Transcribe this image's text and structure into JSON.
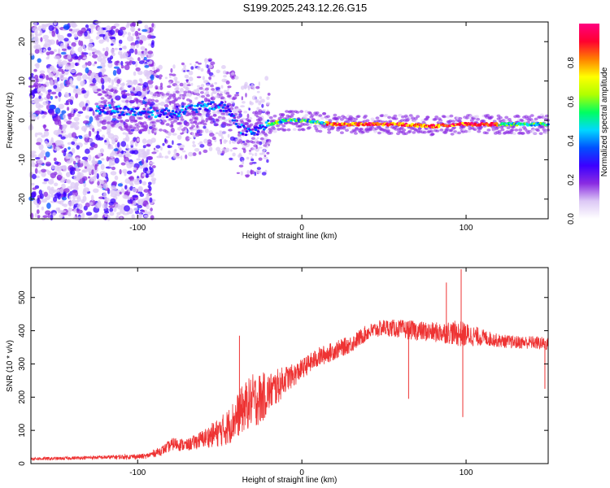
{
  "title": "S199.2025.243.12.26.G15",
  "chart_data": [
    {
      "type": "heatmap",
      "xlabel": "Height of straight line (km)",
      "ylabel": "Frequency (Hz)",
      "xlim": [
        -165,
        150
      ],
      "ylim": [
        -25,
        25
      ],
      "x_ticks": [
        -100,
        0,
        100
      ],
      "y_ticks": [
        -20,
        -10,
        0,
        10,
        20
      ],
      "colorbar": {
        "label": "Normalized spectral amplitude",
        "range": [
          0.0,
          1.0
        ],
        "ticks": [
          0.0,
          0.2,
          0.4,
          0.6,
          0.8
        ],
        "colors": [
          "#ffffff",
          "#dcc8f5",
          "#8a2be2",
          "#3b00ff",
          "#0050ff",
          "#00d8ff",
          "#00ff60",
          "#b0ff00",
          "#ffff00",
          "#ff8000",
          "#ff0030",
          "#ff0080"
        ]
      },
      "ridge": [
        {
          "x": -125,
          "f": 3
        },
        {
          "x": -110,
          "f": 2.5
        },
        {
          "x": -95,
          "f": 2
        },
        {
          "x": -80,
          "f": 2
        },
        {
          "x": -65,
          "f": 3
        },
        {
          "x": -55,
          "f": 4
        },
        {
          "x": -45,
          "f": 3
        },
        {
          "x": -38,
          "f": -2
        },
        {
          "x": -30,
          "f": -3
        },
        {
          "x": -20,
          "f": -1
        },
        {
          "x": -10,
          "f": 0
        },
        {
          "x": 0,
          "f": 0
        },
        {
          "x": 20,
          "f": -1
        },
        {
          "x": 40,
          "f": -1
        },
        {
          "x": 60,
          "f": -1
        },
        {
          "x": 80,
          "f": -1.5
        },
        {
          "x": 95,
          "f": -1
        },
        {
          "x": 120,
          "f": -1
        },
        {
          "x": 150,
          "f": -1
        }
      ]
    },
    {
      "type": "line",
      "xlabel": "Height of straight line (km)",
      "ylabel": "SNR (10 * v/v)",
      "xlim": [
        -165,
        150
      ],
      "ylim": [
        0,
        590
      ],
      "x_ticks": [
        -100,
        0,
        100
      ],
      "y_ticks": [
        0,
        100,
        200,
        300,
        400,
        500
      ],
      "series": [
        {
          "name": "SNR",
          "color": "#ee3333",
          "x": [
            -165,
            -150,
            -130,
            -110,
            -95,
            -85,
            -78,
            -70,
            -60,
            -50,
            -45,
            -40,
            -35,
            -30,
            -25,
            -20,
            -15,
            -10,
            -5,
            0,
            10,
            20,
            30,
            40,
            50,
            60,
            70,
            80,
            90,
            97,
            110,
            120,
            130,
            140,
            150
          ],
          "y": [
            15,
            15,
            18,
            20,
            22,
            40,
            60,
            55,
            75,
            95,
            110,
            140,
            170,
            190,
            195,
            215,
            230,
            255,
            265,
            285,
            320,
            340,
            360,
            395,
            410,
            405,
            400,
            395,
            395,
            390,
            380,
            370,
            365,
            365,
            360
          ],
          "noise": [
            5,
            5,
            5,
            7,
            8,
            14,
            20,
            18,
            28,
            45,
            55,
            65,
            75,
            80,
            80,
            60,
            55,
            40,
            35,
            30,
            30,
            28,
            26,
            25,
            25,
            28,
            30,
            30,
            35,
            40,
            25,
            20,
            20,
            20,
            20
          ]
        }
      ],
      "spikes": [
        {
          "x": 97,
          "y": 585
        },
        {
          "x": 98,
          "y": 140
        },
        {
          "x": 88,
          "y": 545
        },
        {
          "x": 65,
          "y": 195
        },
        {
          "x": 148,
          "y": 225
        },
        {
          "x": -38,
          "y": 385
        }
      ]
    }
  ]
}
